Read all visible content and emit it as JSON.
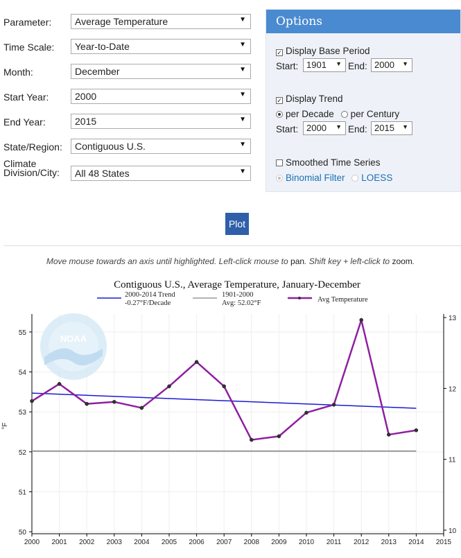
{
  "form": {
    "parameter": {
      "label": "Parameter:",
      "value": "Average Temperature"
    },
    "time_scale": {
      "label": "Time Scale:",
      "value": "Year-to-Date"
    },
    "month": {
      "label": "Month:",
      "value": "December"
    },
    "start_year": {
      "label": "Start Year:",
      "value": "2000"
    },
    "end_year": {
      "label": "End Year:",
      "value": "2015"
    },
    "state_region": {
      "label": "State/Region:",
      "value": "Contiguous U.S."
    },
    "climate_division": {
      "label_line1": "Climate",
      "label_line2": "Division/City:",
      "value": "All 48 States"
    }
  },
  "options": {
    "title": "Options",
    "display_base_period": {
      "label": "Display Base Period",
      "checked": true
    },
    "base_start": {
      "label": "Start:",
      "value": "1901"
    },
    "base_end": {
      "label": "End:",
      "value": "2000"
    },
    "display_trend": {
      "label": "Display Trend",
      "checked": true
    },
    "per_decade": {
      "label": "per Decade",
      "selected": true
    },
    "per_century": {
      "label": "per Century",
      "selected": false
    },
    "trend_start": {
      "label": "Start:",
      "value": "2000"
    },
    "trend_end": {
      "label": "End:",
      "value": "2015"
    },
    "smoothed": {
      "label": "Smoothed Time Series",
      "checked": false
    },
    "binomial": {
      "label": "Binomial Filter",
      "selected": true
    },
    "loess": {
      "label": "LOESS",
      "selected": false
    }
  },
  "plot_button": "Plot",
  "instructions": {
    "part1": "Move mouse towards an axis until highlighted. Left-click mouse to",
    "pan": "pan",
    "part2": ". Shift key + left-click to",
    "zoom": "zoom",
    "part3": "."
  },
  "logo_text": "NOAA",
  "chart_data": {
    "type": "line",
    "title": "Contiguous U.S., Average Temperature, January-December",
    "ylabel": "°F",
    "xlim": [
      2000,
      2015
    ],
    "ylim": [
      49.95,
      55.45
    ],
    "right_ylim": [
      9.95,
      13.05
    ],
    "x_ticks": [
      "2000",
      "2001",
      "2002",
      "2003",
      "2004",
      "2005",
      "2006",
      "2007",
      "2008",
      "2009",
      "2010",
      "2011",
      "2012",
      "2013",
      "2014",
      "2015"
    ],
    "y_ticks": [
      "50",
      "51",
      "52",
      "53",
      "54",
      "55"
    ],
    "right_y_ticks": [
      "10",
      "11",
      "12",
      "13"
    ],
    "grid": true,
    "legend": [
      {
        "line1": "2000-2014 Trend",
        "line2": "-0.27°F/Decade",
        "color": "#1a1ad4"
      },
      {
        "line1": "1901-2000",
        "line2": "Avg: 52.02°F",
        "color": "#999999"
      },
      {
        "line1": "Avg Temperature",
        "line2": "",
        "color": "#8e1fa0"
      }
    ],
    "series": [
      {
        "name": "Avg Temperature",
        "color": "#8e1fa0",
        "x": [
          2000,
          2001,
          2002,
          2003,
          2004,
          2005,
          2006,
          2007,
          2008,
          2009,
          2010,
          2011,
          2012,
          2013,
          2014
        ],
        "y": [
          53.27,
          53.7,
          53.2,
          53.25,
          53.1,
          53.64,
          54.25,
          53.64,
          52.3,
          52.39,
          52.98,
          53.18,
          55.3,
          52.43,
          52.54
        ]
      }
    ],
    "trend": {
      "name": "2000-2014 Trend",
      "color": "#1a1ad4",
      "x": [
        2000,
        2014
      ],
      "y": [
        53.47,
        53.09
      ]
    },
    "base": {
      "name": "1901-2000",
      "color": "#999999",
      "x": [
        2000,
        2014
      ],
      "y": [
        52.02,
        52.02
      ]
    }
  }
}
